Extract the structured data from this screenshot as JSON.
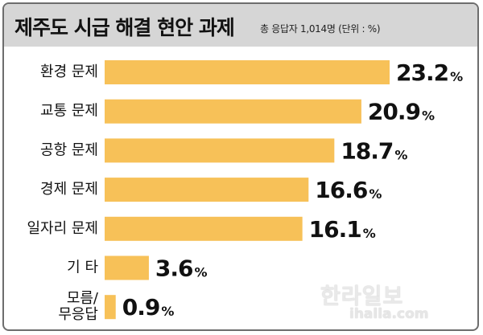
{
  "header": {
    "title": "제주도 시급 해결 현안 과제",
    "subtitle": "총 응답자 1,014명 (단위 : %)"
  },
  "watermark": {
    "logo_text": "한라일보",
    "site_text": "ihalla.com"
  },
  "colors": {
    "bar": "#f7c158",
    "header_bg": "#d6d6d6"
  },
  "chart_data": {
    "type": "bar",
    "orientation": "horizontal",
    "title": "제주도 시급 해결 현안 과제",
    "subtitle": "총 응답자 1,014명 (단위 : %)",
    "unit": "%",
    "categories": [
      [
        "환경 문제"
      ],
      [
        "교통 문제"
      ],
      [
        "공항 문제"
      ],
      [
        "경제 문제"
      ],
      [
        "일자리 문제"
      ],
      [
        "기 타"
      ],
      [
        "모름/",
        "무응답"
      ]
    ],
    "values": [
      23.2,
      20.9,
      18.7,
      16.6,
      16.1,
      3.6,
      0.9
    ],
    "value_labels": [
      "23.2",
      "20.9",
      "18.7",
      "16.6",
      "16.1",
      "3.6",
      "0.9"
    ],
    "xlim": [
      0,
      23.2
    ],
    "grid": false,
    "legend": "none"
  }
}
